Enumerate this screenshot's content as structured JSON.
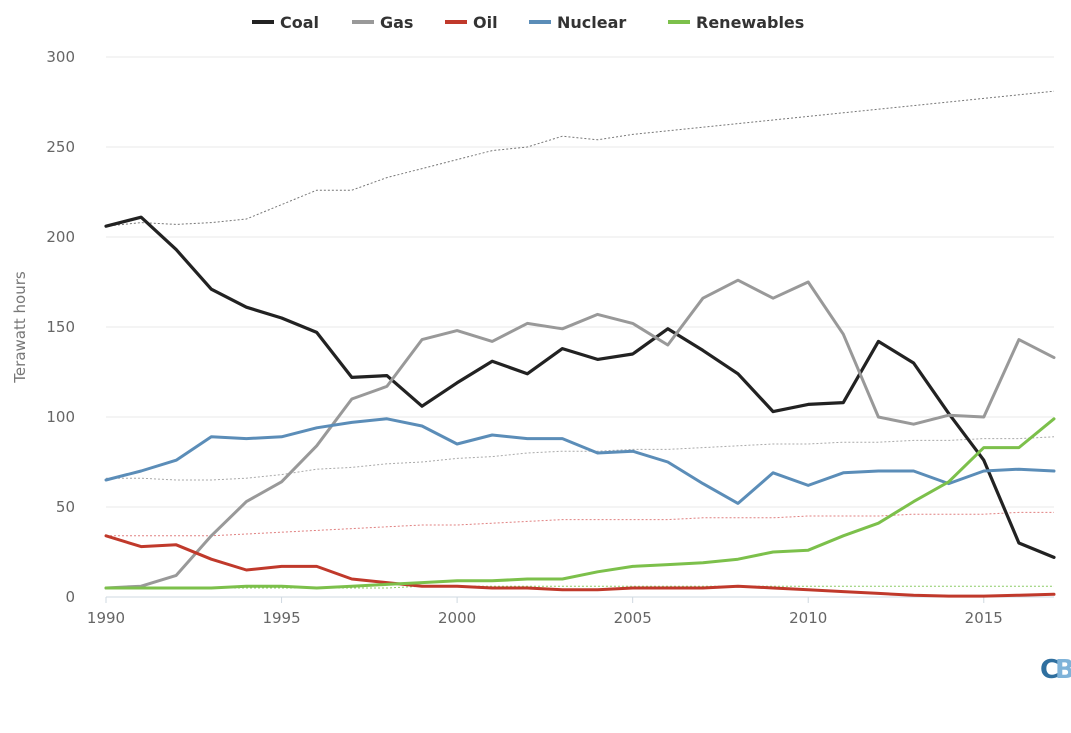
{
  "logo": {
    "c": "C",
    "b": "B"
  },
  "chart_data": {
    "type": "line",
    "ylabel": "Terawatt hours",
    "ylim": [
      0,
      300
    ],
    "xlim": [
      1990,
      2017
    ],
    "grid": true,
    "legend_position": "top",
    "x_ticks": [
      1990,
      1995,
      2000,
      2005,
      2010,
      2015
    ],
    "y_ticks": [
      0,
      50,
      100,
      150,
      200,
      250,
      300
    ],
    "x": [
      1990,
      1991,
      1992,
      1993,
      1994,
      1995,
      1996,
      1997,
      1998,
      1999,
      2000,
      2001,
      2002,
      2003,
      2004,
      2005,
      2006,
      2007,
      2008,
      2009,
      2010,
      2011,
      2012,
      2013,
      2014,
      2015,
      2016,
      2017
    ],
    "series": [
      {
        "name": "Coal",
        "color": "#222222",
        "values": [
          206,
          211,
          193,
          171,
          161,
          155,
          147,
          122,
          123,
          106,
          119,
          131,
          124,
          138,
          132,
          135,
          149,
          137,
          124,
          103,
          107,
          108,
          142,
          130,
          102,
          76,
          30,
          22
        ]
      },
      {
        "name": "Gas",
        "color": "#999999",
        "values": [
          5,
          6,
          12,
          34,
          53,
          64,
          84,
          110,
          117,
          143,
          148,
          142,
          152,
          149,
          157,
          152,
          140,
          166,
          176,
          166,
          175,
          146,
          100,
          96,
          101,
          100,
          143,
          133
        ]
      },
      {
        "name": "Oil",
        "color": "#c0392b",
        "values": [
          34,
          28,
          29,
          21,
          15,
          17,
          17,
          10,
          8,
          6,
          6,
          5,
          5,
          4,
          4,
          5,
          5,
          5,
          6,
          5,
          4,
          3,
          2,
          1,
          0.5,
          0.5,
          1,
          1.5
        ]
      },
      {
        "name": "Nuclear",
        "color": "#5b8db8",
        "values": [
          65,
          70,
          76,
          89,
          88,
          89,
          94,
          97,
          99,
          95,
          85,
          90,
          88,
          88,
          80,
          81,
          75,
          63,
          52,
          69,
          62,
          69,
          70,
          70,
          63,
          70,
          71,
          70
        ]
      },
      {
        "name": "Renewables",
        "color": "#7cc04b",
        "values": [
          5,
          5,
          5,
          5,
          6,
          6,
          5,
          6,
          7,
          8,
          9,
          9,
          10,
          10,
          14,
          17,
          18,
          19,
          21,
          25,
          26,
          34,
          41,
          53,
          64,
          83,
          83,
          99
        ]
      }
    ],
    "reference_series": [
      {
        "color": "#777777",
        "values": [
          206,
          208,
          207,
          208,
          210,
          218,
          226,
          226,
          233,
          238,
          243,
          248,
          250,
          256,
          254,
          257,
          259,
          261,
          263,
          265,
          267,
          269,
          271,
          273,
          275,
          277,
          279,
          281
        ]
      },
      {
        "color": "#aaaaaa",
        "values": [
          66,
          66,
          65,
          65,
          66,
          68,
          71,
          72,
          74,
          75,
          77,
          78,
          80,
          81,
          81,
          82,
          82,
          83,
          84,
          85,
          85,
          86,
          86,
          87,
          87,
          88,
          88,
          89
        ]
      },
      {
        "color": "#e08080",
        "values": [
          34,
          34,
          34,
          34,
          35,
          36,
          37,
          38,
          39,
          40,
          40,
          41,
          42,
          43,
          43,
          43,
          43,
          44,
          44,
          44,
          45,
          45,
          45,
          46,
          46,
          46,
          47,
          47
        ]
      },
      {
        "color": "#8ccc66",
        "values": [
          5,
          5,
          5,
          5,
          5,
          5,
          5,
          5,
          5,
          6,
          6,
          6,
          6,
          6,
          6,
          6,
          6,
          6,
          6,
          6,
          6,
          6,
          6,
          6,
          6,
          6,
          6,
          6
        ]
      }
    ]
  }
}
